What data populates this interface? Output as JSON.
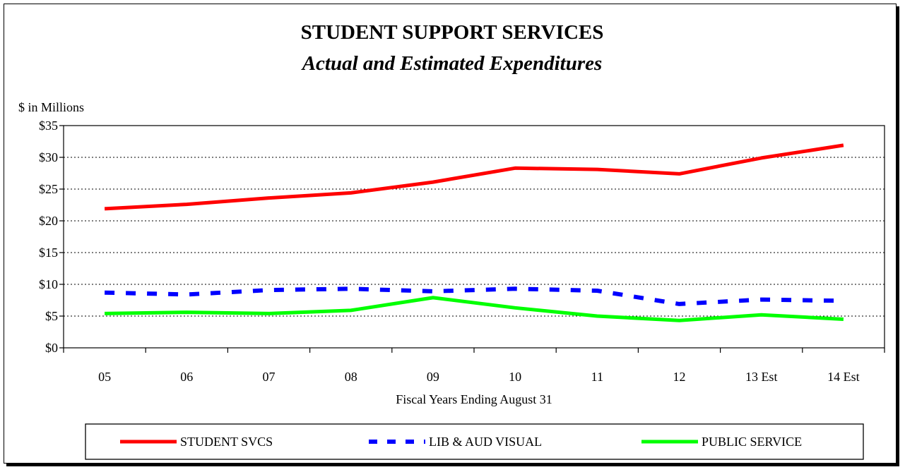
{
  "chart_data": {
    "type": "line",
    "title": "STUDENT SUPPORT SERVICES",
    "subtitle": "Actual and Estimated Expenditures",
    "ylabel": "$ in Millions",
    "xlabel": "Fiscal Years Ending August 31",
    "categories": [
      "05",
      "06",
      "07",
      "08",
      "09",
      "10",
      "11",
      "12",
      "13 Est",
      "14 Est"
    ],
    "ylim": [
      0,
      35
    ],
    "yticks": [
      0,
      5,
      10,
      15,
      20,
      25,
      30,
      35
    ],
    "ytick_labels": [
      "$0",
      "$5",
      "$10",
      "$15",
      "$20",
      "$25",
      "$30",
      "$35"
    ],
    "grid": "horizontal dotted",
    "legend_position": "bottom",
    "series": [
      {
        "name": "STUDENT SVCS",
        "color": "#ff0000",
        "style": "solid",
        "values": [
          21.9,
          22.6,
          23.6,
          24.4,
          26.1,
          28.3,
          28.1,
          27.4,
          29.9,
          31.9
        ]
      },
      {
        "name": "LIB & AUD VISUAL",
        "color": "#0000ff",
        "style": "dashed",
        "values": [
          8.7,
          8.4,
          9.1,
          9.3,
          8.9,
          9.3,
          9.0,
          6.9,
          7.6,
          7.4
        ]
      },
      {
        "name": "PUBLIC SERVICE",
        "color": "#00ff00",
        "style": "solid",
        "values": [
          5.4,
          5.6,
          5.4,
          5.9,
          7.9,
          6.3,
          5.0,
          4.3,
          5.2,
          4.5
        ]
      }
    ]
  }
}
